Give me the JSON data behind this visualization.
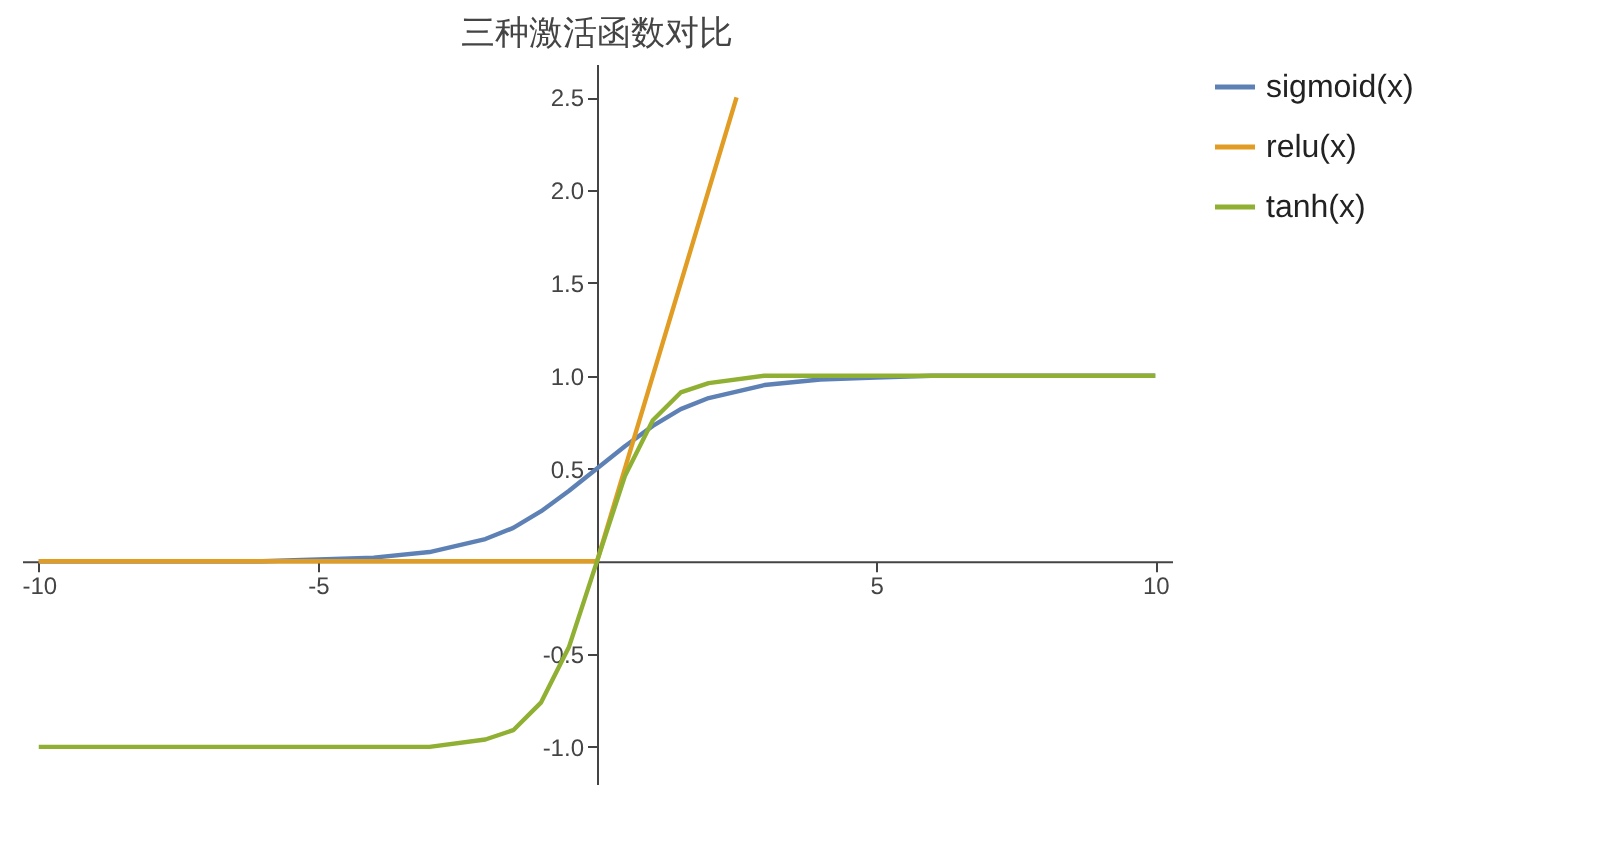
{
  "chart_data": {
    "type": "line",
    "title": "三种激活函数对比",
    "legend": "right",
    "grid": false,
    "marker": "none",
    "line_style": "solid",
    "xlim": [
      -10.3,
      10.3
    ],
    "xticks": [
      -10,
      -5,
      5,
      10
    ],
    "ylim": [
      -1.2,
      2.68
    ],
    "yticks": [
      {
        "value": -1,
        "label": "-1.0"
      },
      {
        "value": -0.5,
        "label": "-0.5"
      },
      {
        "value": 0.5,
        "label": "0.5"
      },
      {
        "value": 1,
        "label": "1.0"
      },
      {
        "value": 1.5,
        "label": "1.5"
      },
      {
        "value": 2,
        "label": "2.0"
      },
      {
        "value": 2.5,
        "label": "2.5"
      }
    ],
    "series": [
      {
        "name": "sigmoid(x)",
        "color": "#5e81b5",
        "x": [
          -10,
          -8,
          -6,
          -5,
          -4,
          -3,
          -2,
          -1.5,
          -1,
          -0.5,
          0,
          0.5,
          1,
          1.5,
          2,
          3,
          4,
          5,
          6,
          8,
          10
        ],
        "values": [
          0,
          0,
          0,
          0.01,
          0.02,
          0.05,
          0.12,
          0.18,
          0.27,
          0.38,
          0.5,
          0.62,
          0.73,
          0.82,
          0.88,
          0.95,
          0.98,
          0.99,
          1,
          1,
          1
        ]
      },
      {
        "name": "relu(x)",
        "color": "#e19c24",
        "x": [
          -10,
          0,
          2.5
        ],
        "values": [
          0,
          0,
          2.5
        ]
      },
      {
        "name": "tanh(x)",
        "color": "#8fb032",
        "x": [
          -10,
          -8,
          -6,
          -5,
          -4,
          -3,
          -2,
          -1.5,
          -1,
          -0.5,
          0,
          0.5,
          1,
          1.5,
          2,
          3,
          4,
          5,
          6,
          8,
          10
        ],
        "values": [
          -1,
          -1,
          -1,
          -1,
          -1,
          -1,
          -0.96,
          -0.91,
          -0.76,
          -0.46,
          0,
          0.46,
          0.76,
          0.91,
          0.96,
          1,
          1,
          1,
          1,
          1,
          1
        ]
      }
    ]
  }
}
